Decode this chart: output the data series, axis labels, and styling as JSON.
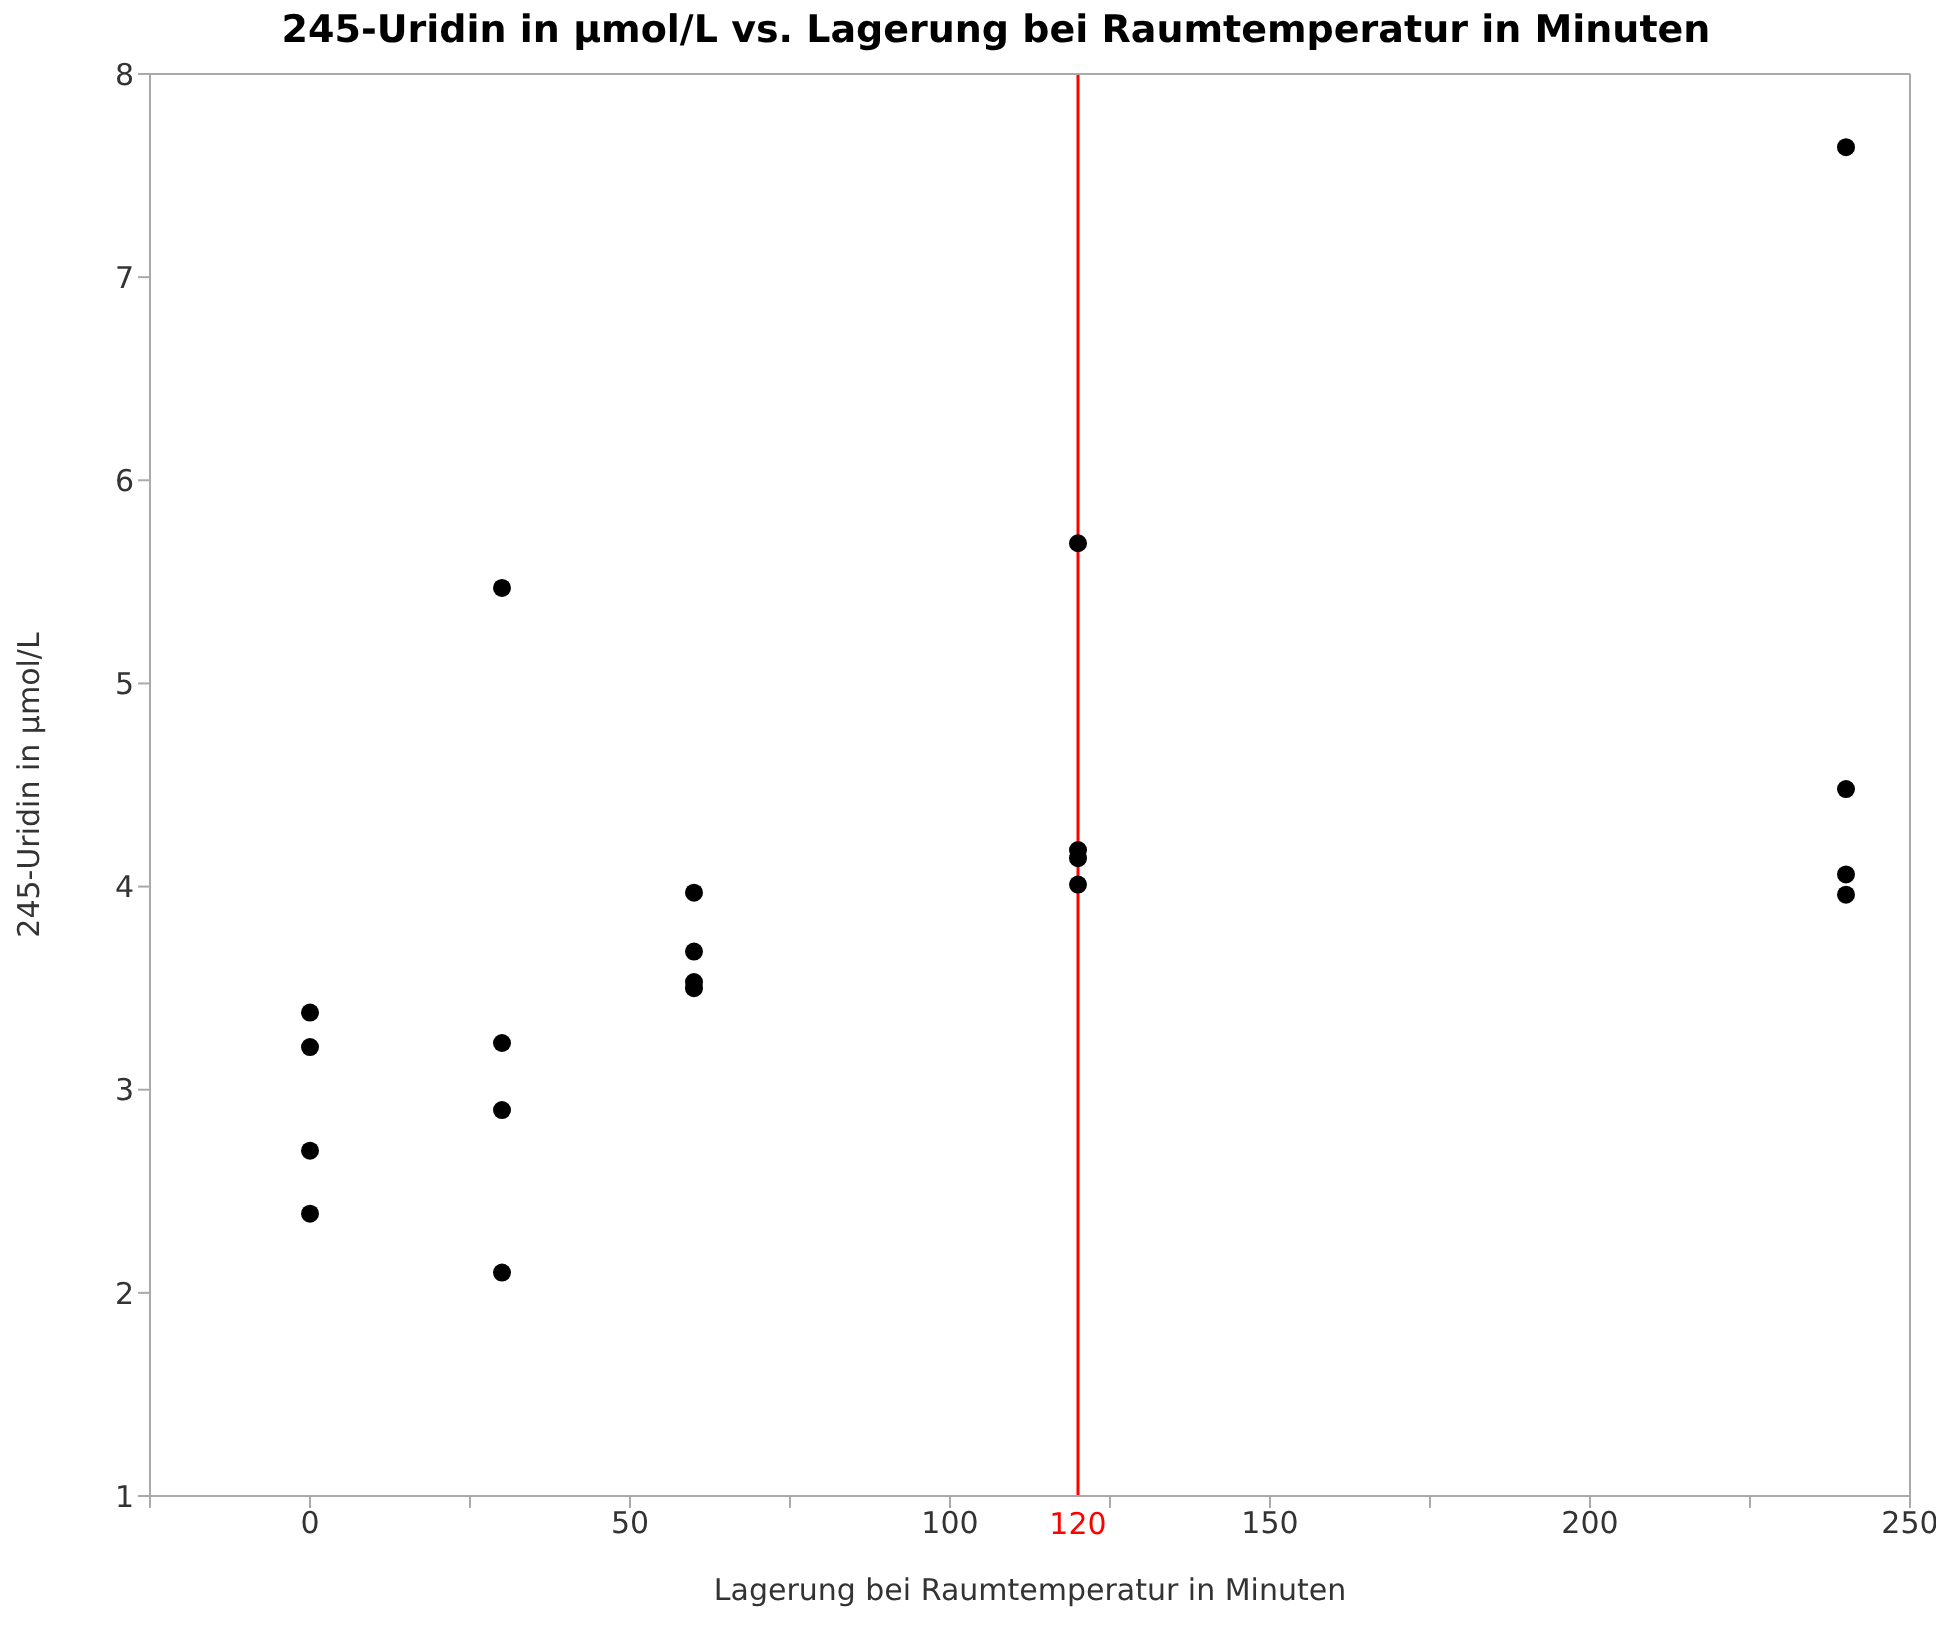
{
  "chart_data": {
    "type": "scatter",
    "title": "245-Uridin in µmol/L vs. Lagerung bei Raumtemperatur in Minuten",
    "xlabel": "Lagerung bei Raumtemperatur in Minuten",
    "ylabel": "245-Uridin in µmol/L",
    "x": [
      0,
      0,
      0,
      0,
      30,
      30,
      30,
      30,
      60,
      60,
      60,
      60,
      120,
      120,
      120,
      120,
      240,
      240,
      240,
      240
    ],
    "values": [
      3.38,
      3.21,
      2.7,
      2.39,
      5.47,
      3.23,
      2.9,
      2.1,
      3.97,
      3.68,
      3.53,
      3.5,
      5.69,
      4.18,
      4.14,
      4.01,
      7.64,
      4.48,
      4.06,
      3.96
    ],
    "color": "#000000",
    "marker": "circle",
    "xlim": [
      -25,
      250
    ],
    "xticks": [
      {
        "value": -25,
        "label": null
      },
      0,
      {
        "value": 25,
        "label": null
      },
      50,
      {
        "value": 75,
        "label": null
      },
      100,
      {
        "value": 125,
        "label": null
      },
      150,
      {
        "value": 175,
        "label": null
      },
      200,
      {
        "value": 225,
        "label": null
      },
      250
    ],
    "ylim": [
      1,
      8
    ],
    "yticks": [
      1,
      2,
      3,
      4,
      5,
      6,
      7,
      8
    ],
    "ref_lines": [
      {
        "axis": "x",
        "value": 120,
        "label": "120",
        "color": "#ff0000",
        "line_style": "solid"
      }
    ]
  }
}
